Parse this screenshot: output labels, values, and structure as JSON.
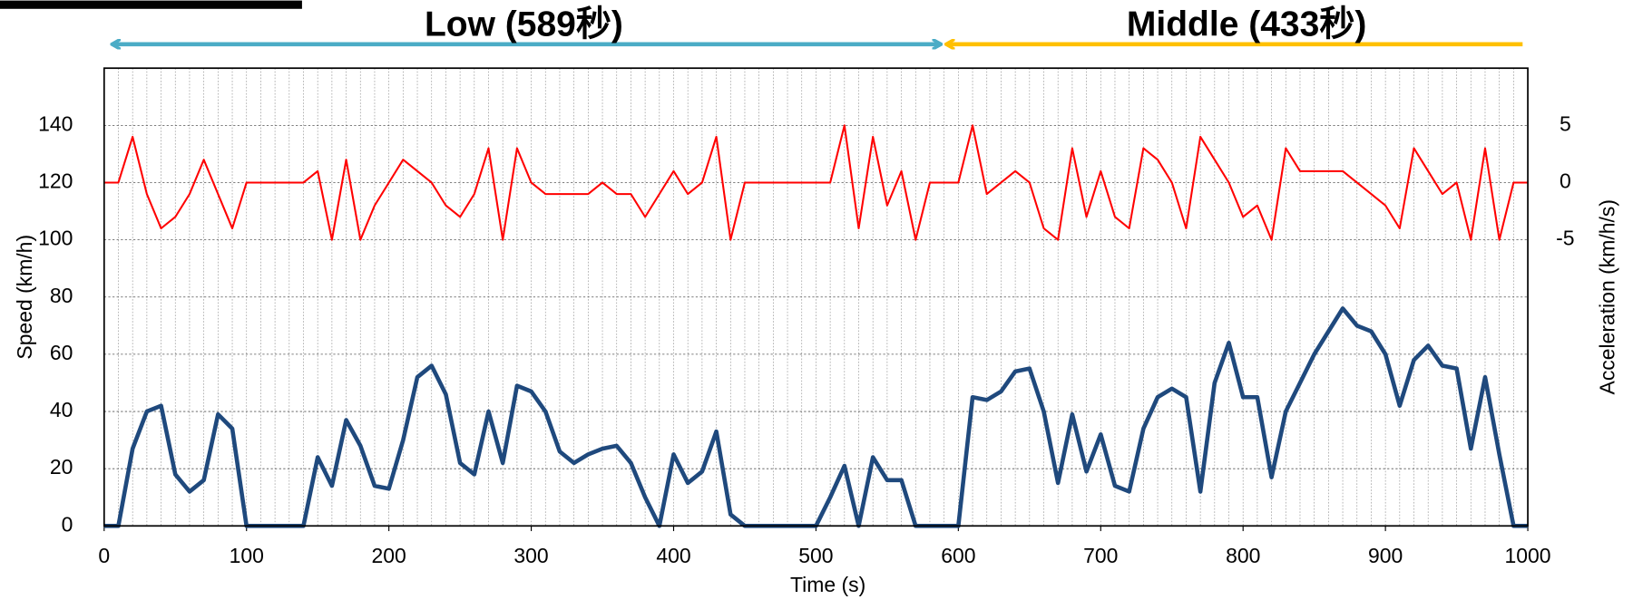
{
  "chart_data": {
    "type": "line",
    "annotations": [
      {
        "text": "Low (589秒)",
        "color": "#4bacc6"
      },
      {
        "text": "Middle (433秒)",
        "color": "#ffc000"
      }
    ],
    "xlabel": "Time (s)",
    "ylabel": "Speed (km/h)",
    "y2label": "Acceleration (km/h/s)",
    "x": [
      0,
      10,
      20,
      30,
      40,
      50,
      60,
      70,
      80,
      90,
      100,
      110,
      120,
      130,
      140,
      150,
      160,
      170,
      180,
      190,
      200,
      210,
      220,
      230,
      240,
      250,
      260,
      270,
      280,
      290,
      300,
      310,
      320,
      330,
      340,
      350,
      360,
      370,
      380,
      390,
      400,
      410,
      420,
      430,
      440,
      450,
      460,
      470,
      480,
      490,
      500,
      510,
      520,
      530,
      540,
      550,
      560,
      570,
      580,
      590,
      600,
      610,
      620,
      630,
      640,
      650,
      660,
      670,
      680,
      690,
      700,
      710,
      720,
      730,
      740,
      750,
      760,
      770,
      780,
      790,
      800,
      810,
      820,
      830,
      840,
      850,
      860,
      870,
      880,
      890,
      900,
      910,
      920,
      930,
      940,
      950,
      960,
      970,
      980,
      990,
      1000
    ],
    "series": [
      {
        "name": "Speed",
        "color": "#1f497d",
        "values": [
          0,
          0,
          27,
          40,
          42,
          18,
          12,
          16,
          39,
          34,
          0,
          0,
          0,
          0,
          0,
          24,
          14,
          37,
          28,
          14,
          13,
          30,
          52,
          56,
          46,
          22,
          18,
          40,
          22,
          49,
          47,
          40,
          26,
          22,
          25,
          27,
          28,
          22,
          10,
          0,
          25,
          15,
          19,
          33,
          4,
          0,
          0,
          0,
          0,
          0,
          0,
          10,
          21,
          0,
          24,
          16,
          16,
          0,
          0,
          0,
          0,
          45,
          44,
          47,
          54,
          55,
          40,
          15,
          39,
          19,
          32,
          14,
          12,
          34,
          45,
          48,
          45,
          12,
          50,
          64,
          45,
          45,
          17,
          40,
          50,
          60,
          68,
          76,
          70,
          68,
          60,
          42,
          58,
          63,
          56,
          55,
          27,
          52,
          25,
          0,
          0
        ]
      },
      {
        "name": "Acceleration",
        "color": "#ff0000",
        "axis": "y2",
        "values": [
          0,
          0,
          4,
          -1,
          -4,
          -3,
          -1,
          2,
          -1,
          -4,
          0,
          0,
          0,
          0,
          0,
          1,
          -5,
          2,
          -5,
          -2,
          0,
          2,
          1,
          0,
          -2,
          -3,
          -1,
          3,
          -5,
          3,
          0,
          -1,
          -1,
          -1,
          -1,
          0,
          -1,
          -1,
          -3,
          -1,
          1,
          -1,
          0,
          4,
          -5,
          0,
          0,
          0,
          0,
          0,
          0,
          0,
          5,
          -4,
          4,
          -2,
          1,
          -5,
          0,
          0,
          0,
          5,
          -1,
          0,
          1,
          0,
          -4,
          -5,
          3,
          -3,
          1,
          -3,
          -4,
          3,
          2,
          0,
          -4,
          4,
          2,
          0,
          -3,
          -2,
          -5,
          3,
          1,
          1,
          1,
          1,
          0,
          -1,
          -2,
          -4,
          3,
          1,
          -1,
          0,
          -5,
          3,
          -5,
          0,
          0
        ]
      }
    ],
    "xlim": [
      0,
      1000
    ],
    "xticks": [
      0,
      100,
      200,
      300,
      400,
      500,
      600,
      700,
      800,
      900,
      1000
    ],
    "xminorticks": [
      0,
      10,
      20,
      30,
      40,
      50,
      60,
      70,
      80,
      90,
      100,
      110,
      120,
      130,
      140,
      150,
      160,
      170,
      180,
      190,
      200,
      210,
      220,
      230,
      240,
      250,
      260,
      270,
      280,
      290,
      300,
      310,
      320,
      330,
      340,
      350,
      360,
      370,
      380,
      390,
      400,
      410,
      420,
      430,
      440,
      450,
      460,
      470,
      480,
      490,
      500,
      510,
      520,
      530,
      540,
      550,
      560,
      570,
      580,
      590,
      600,
      610,
      620,
      630,
      640,
      650,
      660,
      670,
      680,
      690,
      700,
      710,
      720,
      730,
      740,
      750,
      760,
      770,
      780,
      790,
      800,
      810,
      820,
      830,
      840,
      850,
      860,
      870,
      880,
      890,
      900,
      910,
      920,
      930,
      940,
      950,
      960,
      970,
      980,
      990,
      1000
    ],
    "ylim": [
      0,
      160
    ],
    "yticks": [
      0,
      20,
      40,
      60,
      80,
      100,
      120,
      140
    ],
    "y2lim": [
      -30,
      10
    ],
    "y2ticks": [
      -5,
      0,
      5
    ],
    "grid": true
  }
}
